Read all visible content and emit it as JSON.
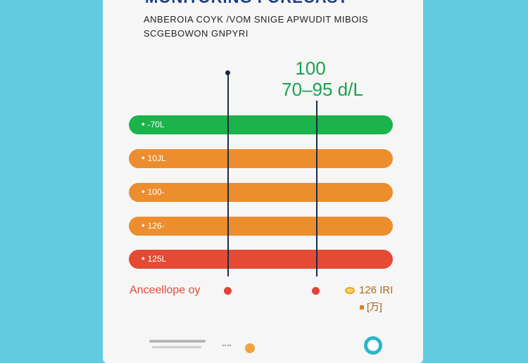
{
  "header": {
    "title": "MONITORING FORECAST",
    "subtitle_line1": "ANBEROIA COYK /VOM SNIGE APWUDIT MIBOIS",
    "subtitle_line2": "SCGEBOWON GNPYRI"
  },
  "reading": {
    "value": "100",
    "range": "70–95 d/L"
  },
  "bars": [
    {
      "label": "-70L",
      "color": "#1cb24c"
    },
    {
      "label": "10JL",
      "color": "#ec8d2e"
    },
    {
      "label": "100-",
      "color": "#ec8d2e"
    },
    {
      "label": "126-",
      "color": "#ec8d2e"
    },
    {
      "label": "125L",
      "color": "#e44a34"
    }
  ],
  "legend": {
    "left_label": "Anceellope oy",
    "right_top_label": "126 IRI",
    "right_bottom_label": "[万]"
  },
  "colors": {
    "background": "#62cbe0",
    "card": "#f6f6f6",
    "green": "#1cb24c",
    "orange": "#ec8d2e",
    "red": "#e44a34",
    "marker": "#1d2a44"
  }
}
